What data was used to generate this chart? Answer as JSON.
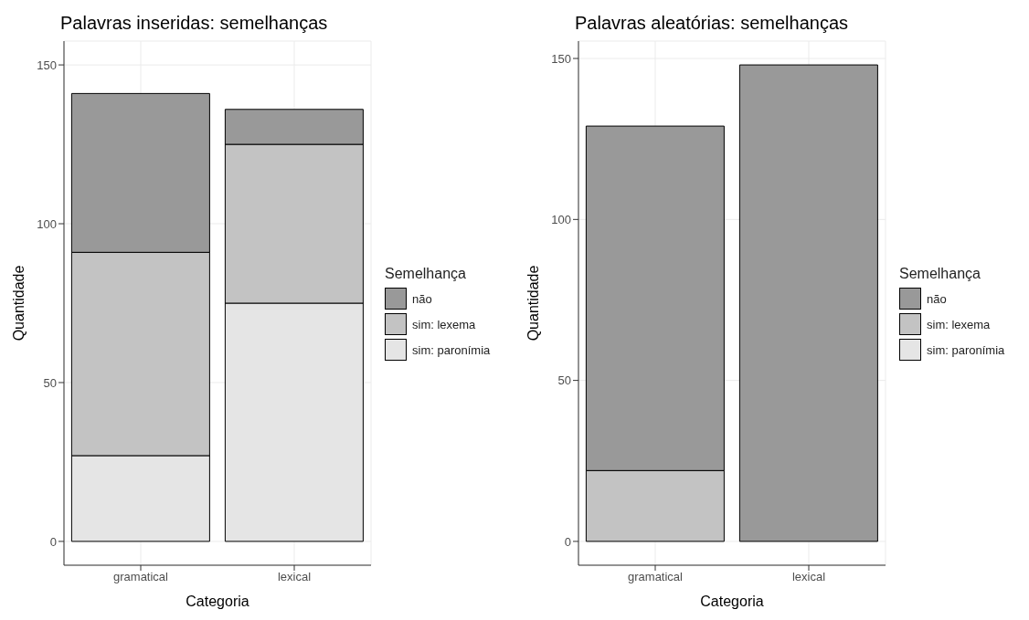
{
  "chart_data": [
    {
      "type": "bar",
      "title": "Palavras inseridas: semelhanças",
      "xlabel": "Categoria",
      "ylabel": "Quantidade",
      "legend_title": "Semelhança",
      "categories": [
        "gramatical",
        "lexical"
      ],
      "stacked": true,
      "ylim": [
        -7.5,
        157.5
      ],
      "yticks": [
        0,
        50,
        100,
        150
      ],
      "grid": true,
      "legend": "right",
      "series": [
        {
          "name": "sim: paronímia",
          "color": "#e5e5e5",
          "values": [
            27,
            75
          ]
        },
        {
          "name": "sim: lexema",
          "color": "#c3c3c3",
          "values": [
            64,
            50
          ]
        },
        {
          "name": "não",
          "color": "#999999",
          "values": [
            50,
            11
          ]
        }
      ]
    },
    {
      "type": "bar",
      "title": "Palavras aleatórias: semelhanças",
      "xlabel": "Categoria",
      "ylabel": "Quantidade",
      "legend_title": "Semelhança",
      "categories": [
        "gramatical",
        "lexical"
      ],
      "stacked": true,
      "ylim": [
        -7.4,
        155.4
      ],
      "yticks": [
        0,
        50,
        100,
        150
      ],
      "grid": true,
      "legend": "right",
      "series": [
        {
          "name": "sim: paronímia",
          "color": "#e5e5e5",
          "values": [
            0,
            0
          ]
        },
        {
          "name": "sim: lexema",
          "color": "#c3c3c3",
          "values": [
            22,
            0
          ]
        },
        {
          "name": "não",
          "color": "#999999",
          "values": [
            107,
            148
          ]
        }
      ]
    }
  ]
}
